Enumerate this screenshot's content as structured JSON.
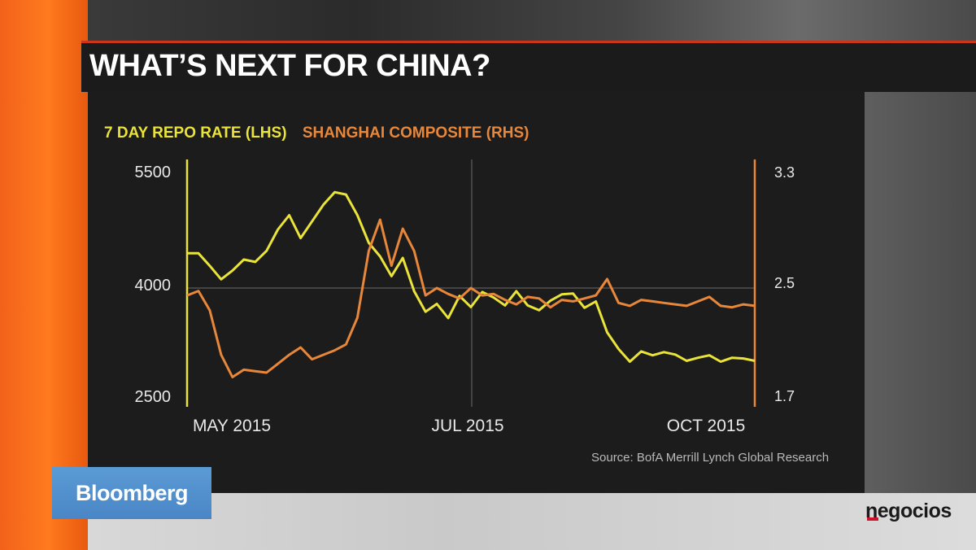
{
  "title": "WHAT’S NEXT FOR CHINA?",
  "source": "Source: BofA Merrill Lynch Global Research",
  "broadcaster_logo": "Bloomberg",
  "watermark_logo": "negocios",
  "colors": {
    "repo_rate": "#e9e33a",
    "shanghai_composite": "#e8873a",
    "brand_orange": "#ff7a1e",
    "title_accent": "#c9361a"
  },
  "chart_data": {
    "type": "line",
    "title": "WHAT’S NEXT FOR CHINA?",
    "legend_placement": "top-left",
    "grid": true,
    "x_ticks": [
      "MAY 2015",
      "JUL 2015",
      "OCT 2015"
    ],
    "left_axis": {
      "ticks": [
        "5500",
        "4000",
        "2500"
      ],
      "ylim": [
        2500,
        5500
      ]
    },
    "right_axis": {
      "ticks": [
        "3.3",
        "2.5",
        "1.7"
      ],
      "ylim": [
        1.7,
        3.3
      ]
    },
    "series": [
      {
        "name": "7 DAY REPO RATE (LHS)",
        "axis": "left",
        "values": [
          4440,
          4440,
          4280,
          4110,
          4220,
          4360,
          4330,
          4470,
          4740,
          4920,
          4630,
          4840,
          5050,
          5210,
          5180,
          4920,
          4570,
          4400,
          4150,
          4380,
          3960,
          3700,
          3800,
          3620,
          3900,
          3760,
          3950,
          3880,
          3780,
          3960,
          3780,
          3720,
          3840,
          3920,
          3930,
          3750,
          3830,
          3440,
          3230,
          3070,
          3200,
          3150,
          3190,
          3160,
          3080,
          3120,
          3150,
          3070,
          3120,
          3110,
          3080
        ]
      },
      {
        "name": "SHANGHAI COMPOSITE (RHS)",
        "axis": "right",
        "values": [
          2.45,
          2.48,
          2.35,
          2.05,
          1.9,
          1.95,
          1.94,
          1.93,
          1.99,
          2.05,
          2.1,
          2.02,
          2.05,
          2.08,
          2.12,
          2.3,
          2.75,
          2.96,
          2.65,
          2.9,
          2.75,
          2.45,
          2.5,
          2.46,
          2.43,
          2.5,
          2.45,
          2.46,
          2.42,
          2.39,
          2.44,
          2.43,
          2.37,
          2.42,
          2.41,
          2.43,
          2.45,
          2.56,
          2.4,
          2.38,
          2.42,
          2.41,
          2.4,
          2.39,
          2.38,
          2.41,
          2.44,
          2.38,
          2.37,
          2.39,
          2.38
        ]
      }
    ]
  }
}
